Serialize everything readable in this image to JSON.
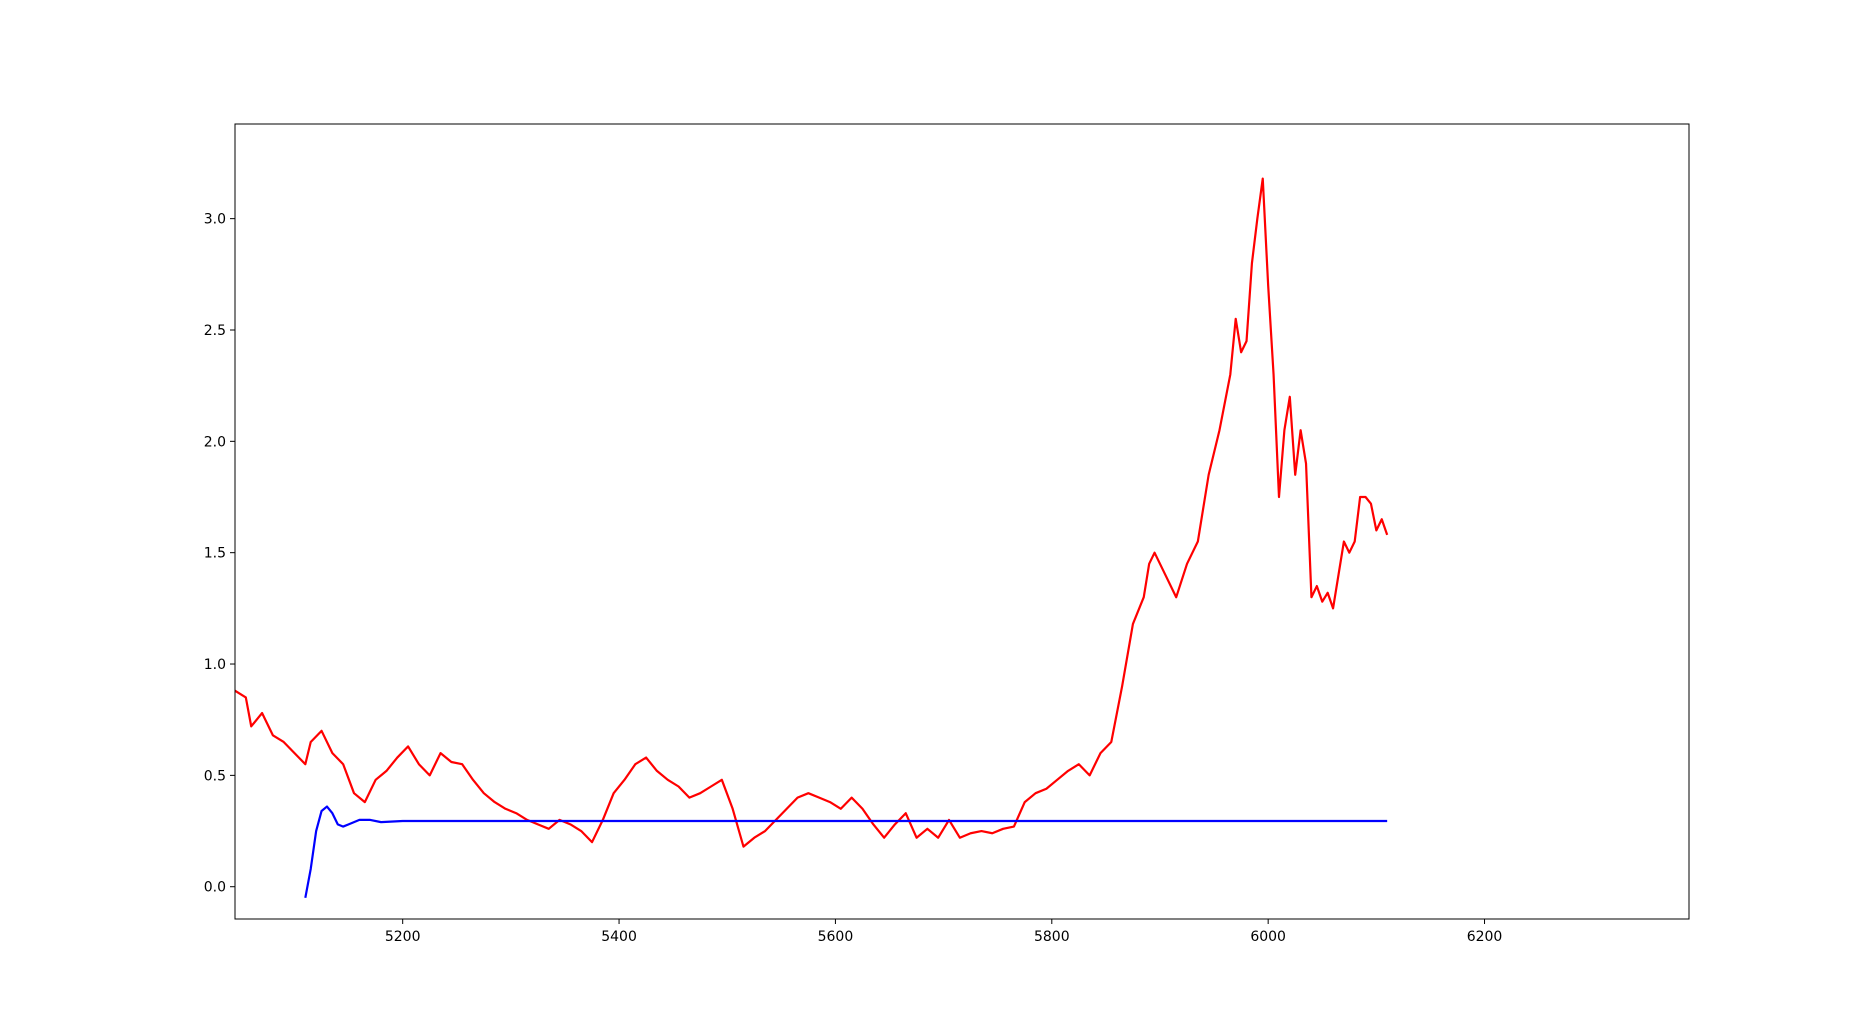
{
  "chart_data": {
    "type": "line",
    "xlim": [
      5045,
      6389
    ],
    "ylim": [
      -0.145,
      3.425
    ],
    "xticks": [
      5200,
      5400,
      5600,
      5800,
      6000,
      6200
    ],
    "yticks": [
      {
        "value": 0,
        "label": "0.0"
      },
      {
        "value": 0.5,
        "label": "0.5"
      },
      {
        "value": 1,
        "label": "1.0"
      },
      {
        "value": 1.5,
        "label": "1.5"
      },
      {
        "value": 2,
        "label": "2.0"
      },
      {
        "value": 2.5,
        "label": "2.5"
      },
      {
        "value": 3,
        "label": "3.0"
      }
    ],
    "series": [
      {
        "color": "#ff0000",
        "x": [
          5045,
          5055,
          5060,
          5070,
          5080,
          5090,
          5100,
          5110,
          5115,
          5125,
          5135,
          5145,
          5155,
          5165,
          5175,
          5185,
          5195,
          5205,
          5215,
          5225,
          5235,
          5245,
          5255,
          5265,
          5275,
          5285,
          5295,
          5305,
          5315,
          5325,
          5335,
          5345,
          5355,
          5365,
          5375,
          5385,
          5395,
          5405,
          5415,
          5425,
          5435,
          5445,
          5455,
          5465,
          5475,
          5485,
          5495,
          5505,
          5515,
          5525,
          5535,
          5545,
          5555,
          5565,
          5575,
          5585,
          5595,
          5605,
          5615,
          5625,
          5635,
          5645,
          5655,
          5665,
          5675,
          5685,
          5695,
          5705,
          5715,
          5725,
          5735,
          5745,
          5755,
          5765,
          5775,
          5785,
          5795,
          5805,
          5815,
          5825,
          5835,
          5845,
          5855,
          5865,
          5875,
          5885,
          5890,
          5895,
          5905,
          5915,
          5925,
          5935,
          5945,
          5955,
          5965,
          5970,
          5975,
          5980,
          5985,
          5990,
          5995,
          6000,
          6005,
          6010,
          6015,
          6020,
          6025,
          6030,
          6035,
          6040,
          6045,
          6050,
          6055,
          6060,
          6065,
          6070,
          6075,
          6080,
          6085,
          6090,
          6095,
          6100,
          6105,
          6110
        ],
        "values": [
          0.88,
          0.85,
          0.72,
          0.78,
          0.68,
          0.65,
          0.6,
          0.55,
          0.65,
          0.7,
          0.6,
          0.55,
          0.42,
          0.38,
          0.48,
          0.52,
          0.58,
          0.63,
          0.55,
          0.5,
          0.6,
          0.56,
          0.55,
          0.48,
          0.42,
          0.38,
          0.35,
          0.33,
          0.3,
          0.28,
          0.26,
          0.3,
          0.28,
          0.25,
          0.2,
          0.3,
          0.42,
          0.48,
          0.55,
          0.58,
          0.52,
          0.48,
          0.45,
          0.4,
          0.42,
          0.45,
          0.48,
          0.35,
          0.18,
          0.22,
          0.25,
          0.3,
          0.35,
          0.4,
          0.42,
          0.4,
          0.38,
          0.35,
          0.4,
          0.35,
          0.28,
          0.22,
          0.28,
          0.33,
          0.22,
          0.26,
          0.22,
          0.3,
          0.22,
          0.24,
          0.25,
          0.24,
          0.26,
          0.27,
          0.38,
          0.42,
          0.44,
          0.48,
          0.52,
          0.55,
          0.5,
          0.6,
          0.65,
          0.9,
          1.18,
          1.3,
          1.45,
          1.5,
          1.4,
          1.3,
          1.45,
          1.55,
          1.85,
          2.05,
          2.3,
          2.55,
          2.4,
          2.45,
          2.8,
          3.0,
          3.18,
          2.7,
          2.3,
          1.75,
          2.05,
          2.2,
          1.85,
          2.05,
          1.9,
          1.3,
          1.35,
          1.28,
          1.32,
          1.25,
          1.4,
          1.55,
          1.5,
          1.55,
          1.75,
          1.75,
          1.72,
          1.6,
          1.65,
          1.58
        ]
      },
      {
        "color": "#0000ff",
        "x": [
          5110,
          5115,
          5120,
          5125,
          5130,
          5135,
          5140,
          5145,
          5150,
          5160,
          5170,
          5180,
          5200,
          6110
        ],
        "values": [
          -0.05,
          0.08,
          0.25,
          0.34,
          0.36,
          0.33,
          0.28,
          0.27,
          0.28,
          0.3,
          0.3,
          0.29,
          0.295,
          0.295
        ]
      }
    ]
  }
}
